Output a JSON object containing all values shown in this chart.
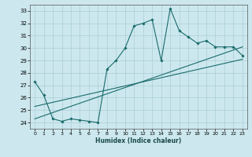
{
  "xlabel": "Humidex (Indice chaleur)",
  "ylabel": "",
  "bg_color": "#cce8ee",
  "grid_color": "#aacdd5",
  "line_color": "#1a6b6b",
  "xlim": [
    -0.5,
    23.5
  ],
  "ylim": [
    23.5,
    33.5
  ],
  "xticks": [
    0,
    1,
    2,
    3,
    4,
    5,
    6,
    7,
    8,
    9,
    10,
    11,
    12,
    13,
    14,
    15,
    16,
    17,
    18,
    19,
    20,
    21,
    22,
    23
  ],
  "yticks": [
    24,
    25,
    26,
    27,
    28,
    29,
    30,
    31,
    32,
    33
  ],
  "series1_x": [
    0,
    1,
    2,
    3,
    4,
    5,
    6,
    7,
    8,
    9,
    10,
    11,
    12,
    13,
    14,
    15,
    16,
    17,
    18,
    19,
    20,
    21,
    22,
    23
  ],
  "series1_y": [
    27.3,
    26.2,
    24.3,
    24.1,
    24.3,
    24.2,
    24.1,
    24.0,
    28.3,
    29.0,
    30.0,
    31.8,
    32.0,
    32.3,
    29.0,
    33.2,
    31.4,
    30.9,
    30.4,
    30.6,
    30.1,
    30.1,
    30.1,
    29.4
  ],
  "series2_x": [
    0,
    23
  ],
  "series2_y": [
    24.3,
    30.1
  ],
  "series3_x": [
    0,
    23
  ],
  "series3_y": [
    25.3,
    29.1
  ]
}
